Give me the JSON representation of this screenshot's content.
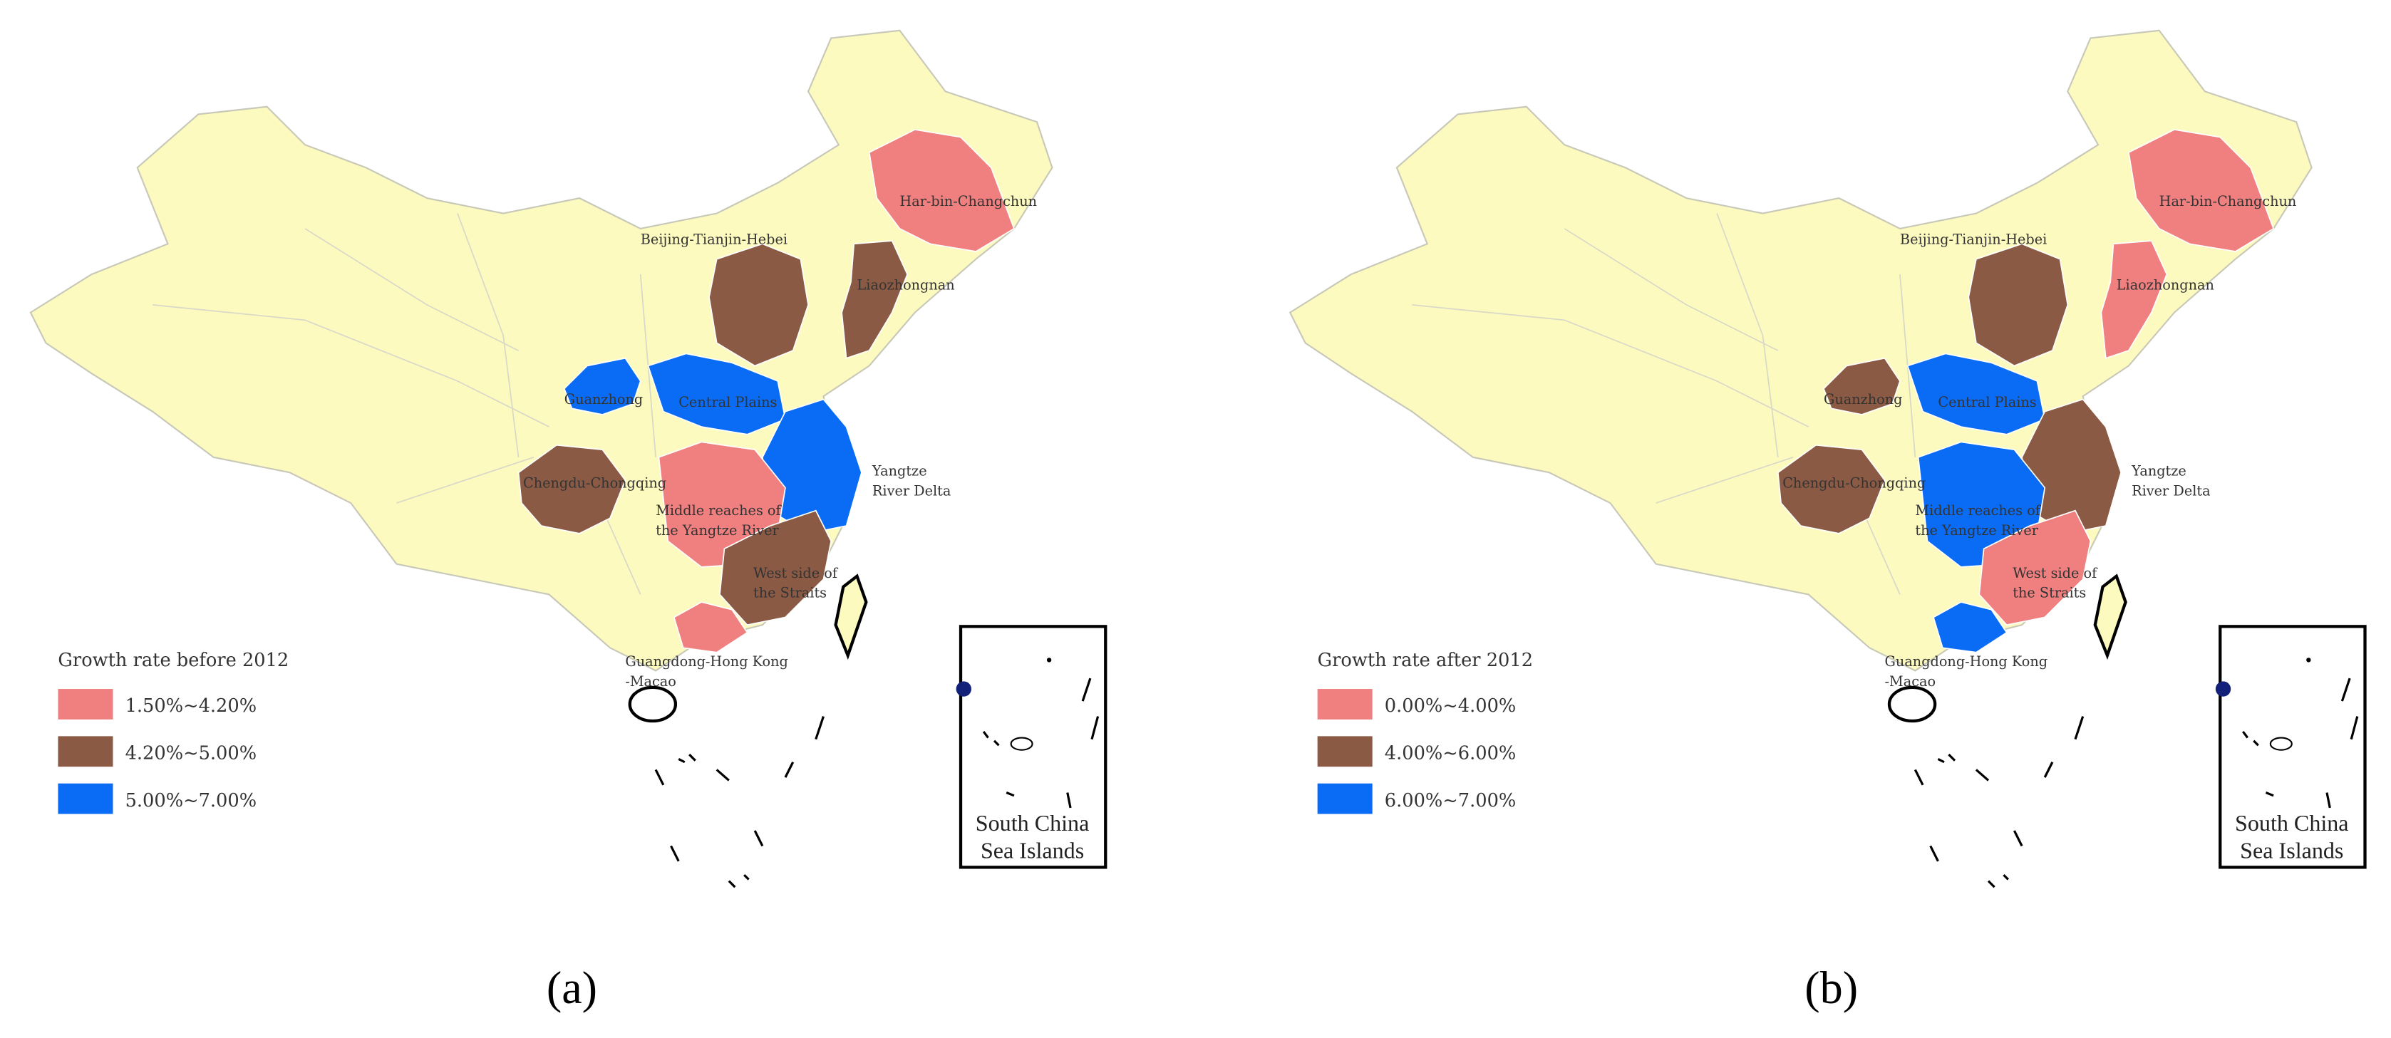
{
  "panels": [
    {
      "label": "(a)",
      "legend": {
        "title": "Growth rate before 2012",
        "items": [
          {
            "label": "1.50%~4.20%",
            "color": "#f08080"
          },
          {
            "label": "4.20%~5.00%",
            "color": "#8b5a44"
          },
          {
            "label": "5.00%~7.00%",
            "color": "#0a6cf5"
          }
        ]
      },
      "regions": [
        {
          "lines": [
            "Har-bin-Changchun"
          ],
          "color": "#f08080"
        },
        {
          "lines": [
            "Beijing-Tianjin-Hebei"
          ],
          "color": "#8b5a44"
        },
        {
          "lines": [
            "Liaozhongnan"
          ],
          "color": "#8b5a44"
        },
        {
          "lines": [
            "Guanzhong"
          ],
          "color": "#0a6cf5"
        },
        {
          "lines": [
            "Central Plains"
          ],
          "color": "#0a6cf5"
        },
        {
          "lines": [
            "Yangtze",
            "River Delta"
          ],
          "color": "#0a6cf5"
        },
        {
          "lines": [
            "Chengdu-Chongqing"
          ],
          "color": "#8b5a44"
        },
        {
          "lines": [
            "Middle reaches of",
            "the Yangtze River"
          ],
          "color": "#f08080"
        },
        {
          "lines": [
            "West side of",
            "the Straits"
          ],
          "color": "#8b5a44"
        },
        {
          "lines": [
            "Guangdong-Hong Kong",
            "-Macao"
          ],
          "color": "#f08080"
        }
      ],
      "inset": [
        "South China",
        "Sea Islands"
      ]
    },
    {
      "label": "(b)",
      "legend": {
        "title": "Growth rate after 2012",
        "items": [
          {
            "label": "0.00%~4.00%",
            "color": "#f08080"
          },
          {
            "label": "4.00%~6.00%",
            "color": "#8b5a44"
          },
          {
            "label": "6.00%~7.00%",
            "color": "#0a6cf5"
          }
        ]
      },
      "regions": [
        {
          "lines": [
            "Har-bin-Changchun"
          ],
          "color": "#f08080"
        },
        {
          "lines": [
            "Beijing-Tianjin-Hebei"
          ],
          "color": "#8b5a44"
        },
        {
          "lines": [
            "Liaozhongnan"
          ],
          "color": "#f08080"
        },
        {
          "lines": [
            "Guanzhong"
          ],
          "color": "#8b5a44"
        },
        {
          "lines": [
            "Central Plains"
          ],
          "color": "#0a6cf5"
        },
        {
          "lines": [
            "Yangtze",
            "River Delta"
          ],
          "color": "#8b5a44"
        },
        {
          "lines": [
            "Chengdu-Chongqing"
          ],
          "color": "#8b5a44"
        },
        {
          "lines": [
            "Middle reaches of",
            "the Yangtze River"
          ],
          "color": "#0a6cf5"
        },
        {
          "lines": [
            "West side of",
            "the Straits"
          ],
          "color": "#f08080"
        },
        {
          "lines": [
            "Guangdong-Hong Kong",
            "-Macao"
          ],
          "color": "#0a6cf5"
        }
      ],
      "inset": [
        "South China",
        "Sea Islands"
      ]
    }
  ]
}
